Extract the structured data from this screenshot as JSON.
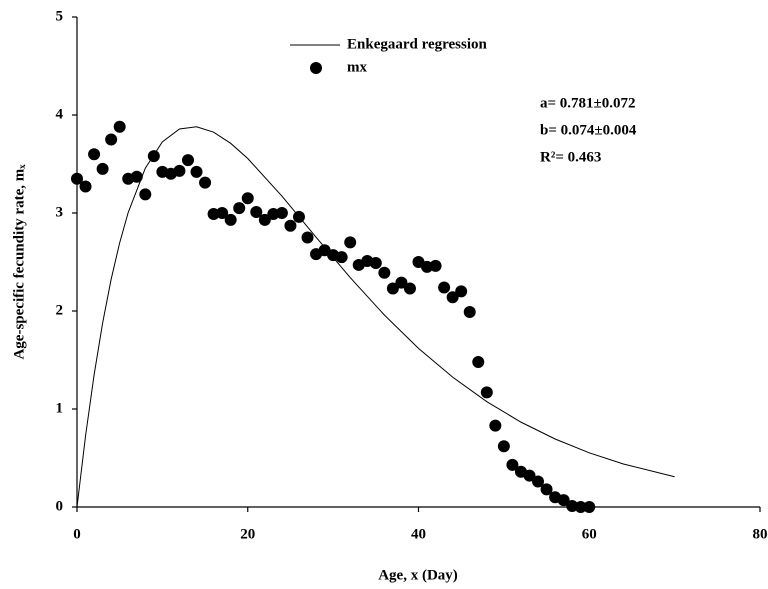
{
  "chart_data": {
    "type": "scatter",
    "x_label": "Age, x (Day)",
    "y_label": "Age-specific fecundity rate, mₓ",
    "xlim": [
      0,
      80
    ],
    "xticks": [
      0,
      20,
      40,
      60,
      80
    ],
    "ylim": [
      0,
      5
    ],
    "yticks": [
      0,
      1,
      2,
      3,
      4,
      5
    ],
    "legend": "top-center",
    "annotations": [
      "a= 0.781±0.072",
      "b= 0.074±0.004",
      "R²= 0.463"
    ],
    "series": [
      {
        "name": "Enkegaard regression",
        "type": "line",
        "color": "#000000",
        "x": [
          0,
          1,
          2,
          3,
          4,
          5,
          6,
          8,
          10,
          12,
          14,
          16,
          18,
          20,
          24,
          28,
          32,
          36,
          40,
          44,
          48,
          52,
          56,
          60,
          64,
          70
        ],
        "values": [
          0,
          0.725,
          1.347,
          1.877,
          2.324,
          2.697,
          3.006,
          3.457,
          3.726,
          3.857,
          3.88,
          3.825,
          3.711,
          3.556,
          3.173,
          2.753,
          2.341,
          1.959,
          1.619,
          1.325,
          1.075,
          0.866,
          0.694,
          0.553,
          0.439,
          0.309
        ]
      },
      {
        "name": "mx",
        "type": "scatter",
        "color": "#000000",
        "x": [
          0,
          1,
          2,
          3,
          4,
          5,
          6,
          7,
          8,
          9,
          10,
          11,
          12,
          13,
          14,
          15,
          16,
          17,
          18,
          19,
          20,
          21,
          22,
          23,
          24,
          25,
          26,
          27,
          28,
          29,
          30,
          31,
          32,
          33,
          34,
          35,
          36,
          37,
          38,
          39,
          40,
          41,
          42,
          43,
          44,
          45,
          46,
          47,
          48,
          49,
          50,
          51,
          52,
          53,
          54,
          55,
          56,
          57,
          58,
          59,
          60
        ],
        "values": [
          3.35,
          3.27,
          3.6,
          3.45,
          3.75,
          3.88,
          3.35,
          3.37,
          3.19,
          3.58,
          3.42,
          3.4,
          3.43,
          3.54,
          3.42,
          3.31,
          2.99,
          3.0,
          2.93,
          3.05,
          3.15,
          3.01,
          2.93,
          2.99,
          3.0,
          2.87,
          2.96,
          2.75,
          2.58,
          2.62,
          2.57,
          2.55,
          2.7,
          2.47,
          2.51,
          2.49,
          2.39,
          2.23,
          2.29,
          2.23,
          2.5,
          2.45,
          2.46,
          2.24,
          2.14,
          2.2,
          1.99,
          1.48,
          1.17,
          0.83,
          0.62,
          0.43,
          0.36,
          0.32,
          0.26,
          0.18,
          0.1,
          0.07,
          0.01,
          0.0,
          0.0
        ]
      }
    ]
  }
}
